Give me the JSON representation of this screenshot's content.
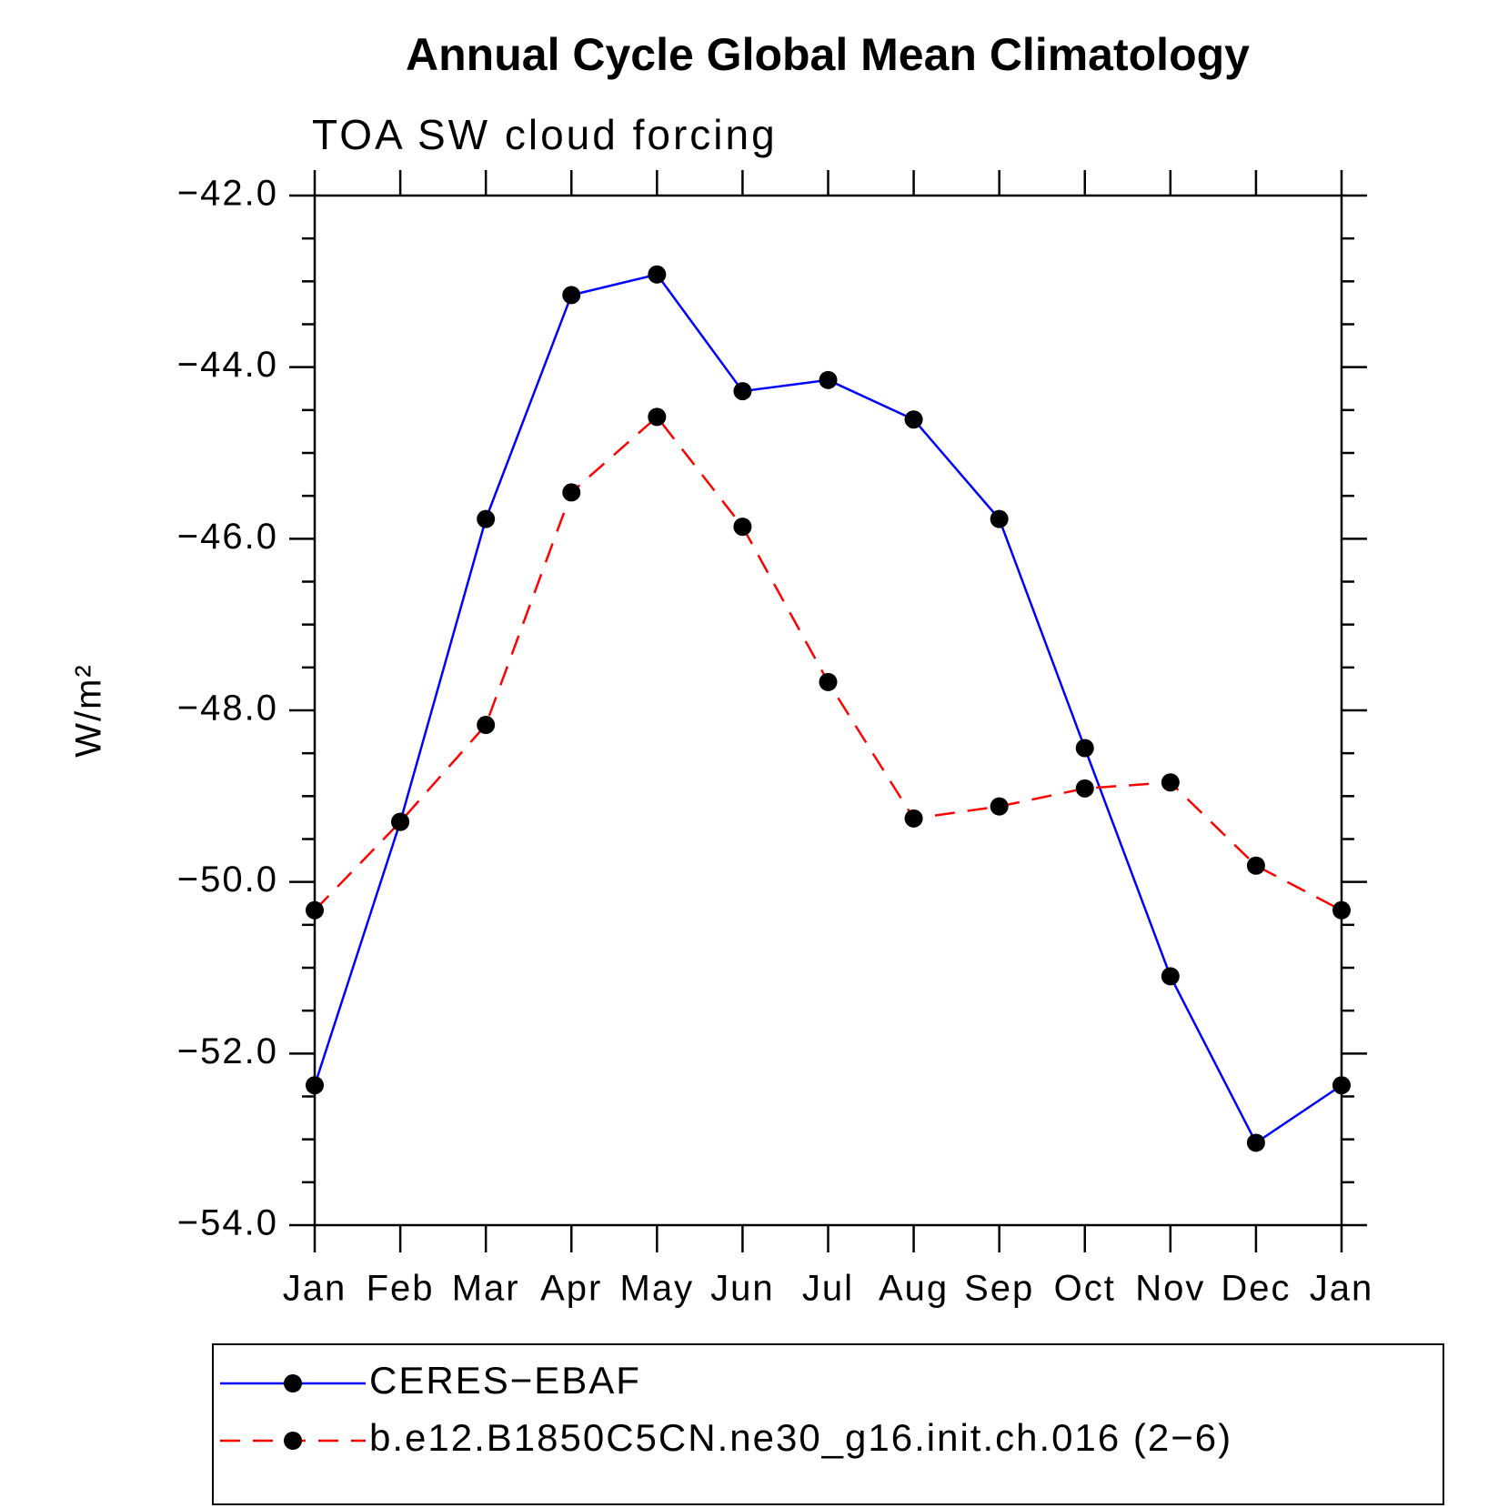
{
  "chart_data": {
    "type": "line",
    "title": "Annual Cycle Global Mean Climatology",
    "subtitle": "TOA SW cloud forcing",
    "y_label": "W/m²",
    "categories": [
      "Jan",
      "Feb",
      "Mar",
      "Apr",
      "May",
      "Jun",
      "Jul",
      "Aug",
      "Sep",
      "Oct",
      "Nov",
      "Dec",
      "Jan"
    ],
    "series": [
      {
        "name": "CERES−EBAF",
        "color": "#0000ff",
        "dash": "solid",
        "values": [
          -52.37,
          -49.3,
          -45.77,
          -43.16,
          -42.92,
          -44.28,
          -44.15,
          -44.61,
          -45.77,
          -48.44,
          -51.1,
          -53.04,
          -52.37
        ]
      },
      {
        "name": "b.e12.B1850C5CN.ne30_g16.init.ch.016 (2−6)",
        "color": "#ff0000",
        "dash": "dashed",
        "values": [
          -50.33,
          -49.3,
          -48.17,
          -45.46,
          -44.58,
          -45.86,
          -47.67,
          -49.26,
          -49.12,
          -48.91,
          -48.84,
          -49.81,
          -50.33
        ]
      }
    ],
    "ylim": [
      -54,
      -42
    ],
    "yticks": [
      {
        "value": -54,
        "label": "−54.0"
      },
      {
        "value": -52,
        "label": "−52.0"
      },
      {
        "value": -50,
        "label": "−50.0"
      },
      {
        "value": -48,
        "label": "−48.0"
      },
      {
        "value": -46,
        "label": "−46.0"
      },
      {
        "value": -44,
        "label": "−44.0"
      },
      {
        "value": -42,
        "label": "−42.0"
      }
    ],
    "grid": false,
    "legend": "bottom"
  }
}
